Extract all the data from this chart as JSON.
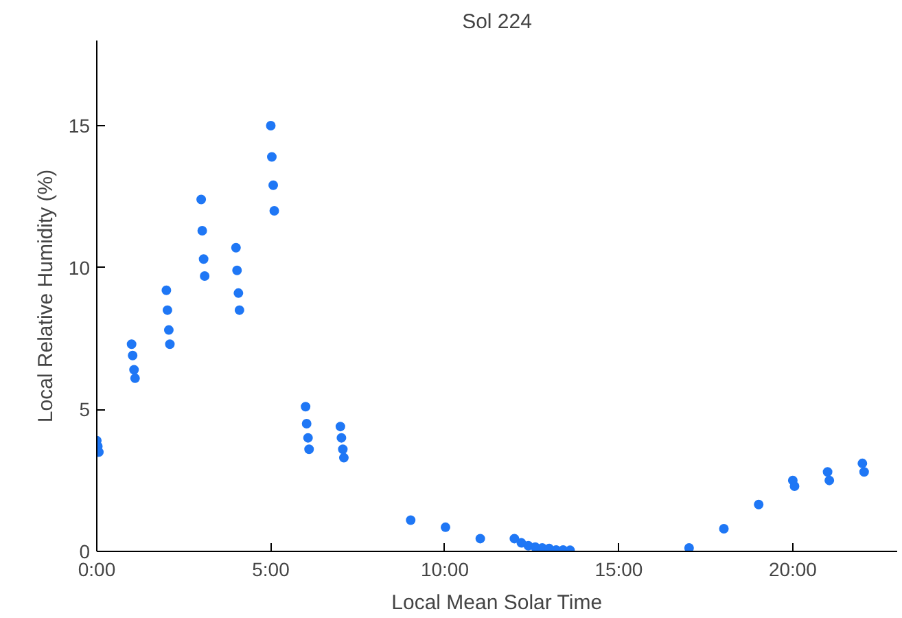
{
  "chart_data": {
    "type": "scatter",
    "title": "Sol 224",
    "xlabel": "Local Mean Solar Time",
    "ylabel": "Local Relative Humidity (%)",
    "xlim": [
      0,
      23
    ],
    "ylim": [
      0,
      18
    ],
    "xticks": [
      {
        "value": 0,
        "label": "0:00"
      },
      {
        "value": 5,
        "label": "5:00"
      },
      {
        "value": 10,
        "label": "10:00"
      },
      {
        "value": 15,
        "label": "15:00"
      },
      {
        "value": 20,
        "label": "20:00"
      }
    ],
    "yticks": [
      0,
      5,
      10,
      15
    ],
    "grid": false,
    "marker": "circle",
    "series": [
      {
        "color": "#1f77f5",
        "x": [
          0.0,
          0.03,
          0.06,
          1.0,
          1.03,
          1.07,
          1.1,
          2.0,
          2.03,
          2.07,
          2.1,
          3.0,
          3.03,
          3.07,
          3.1,
          4.0,
          4.03,
          4.07,
          4.1,
          5.0,
          5.03,
          5.07,
          5.1,
          6.0,
          6.03,
          6.07,
          6.1,
          7.0,
          7.03,
          7.07,
          7.1,
          9.02,
          10.02,
          11.02,
          12.0,
          12.2,
          12.4,
          12.6,
          12.8,
          13.0,
          13.2,
          13.4,
          13.6,
          17.02,
          18.02,
          19.02,
          20.0,
          20.05,
          21.0,
          21.05,
          22.0,
          22.05
        ],
        "values": [
          3.9,
          3.7,
          3.5,
          7.3,
          6.9,
          6.4,
          6.1,
          9.2,
          8.5,
          7.8,
          7.3,
          12.4,
          11.3,
          10.3,
          9.7,
          10.7,
          9.9,
          9.1,
          8.5,
          15.0,
          13.9,
          12.9,
          12.0,
          5.1,
          4.5,
          4.0,
          3.6,
          4.4,
          4.0,
          3.6,
          3.3,
          1.1,
          0.85,
          0.45,
          0.45,
          0.3,
          0.2,
          0.15,
          0.12,
          0.1,
          0.05,
          0.05,
          0.04,
          0.12,
          0.8,
          1.65,
          2.5,
          2.3,
          2.8,
          2.5,
          3.1,
          2.8
        ]
      }
    ]
  }
}
